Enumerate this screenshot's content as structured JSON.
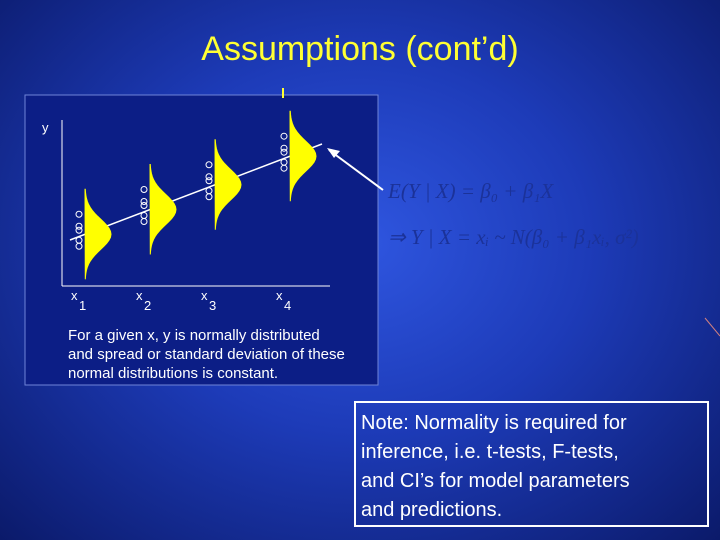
{
  "title": "Assumptions (cont’d)",
  "figure": {
    "y_axis_label": "y",
    "x_labels": [
      {
        "base": "x",
        "sub": "1"
      },
      {
        "base": "x",
        "sub": "2"
      },
      {
        "base": "x",
        "sub": "3"
      },
      {
        "base": "x",
        "sub": "4"
      }
    ],
    "caption_lines": [
      "For a given x, y is normally distributed",
      "and spread or standard deviation of these",
      "normal distributions is constant."
    ]
  },
  "equations": [
    "E(Y | X) = β₀ + β₁X",
    "⇒ Y | X = xᵢ ~ N(β₀ + β₁xᵢ, σ²)"
  ],
  "note_lines": [
    "Note:  Normality is required for",
    "inference, i.e. t-tests, F-tests,",
    "and CI’s for model parameters",
    "and predictions."
  ]
}
